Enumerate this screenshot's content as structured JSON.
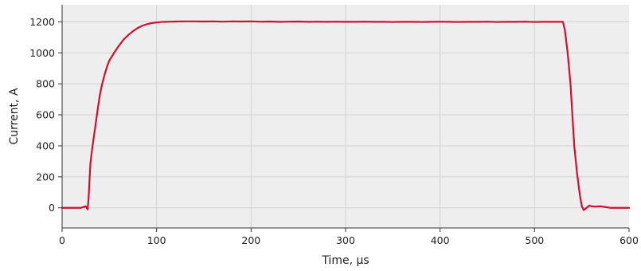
{
  "chart_data": {
    "type": "line",
    "title": "",
    "xlabel": "Time, µs",
    "ylabel": "Current, A",
    "xlim": [
      0,
      600
    ],
    "ylim": [
      -130,
      1310
    ],
    "xticks": [
      0,
      100,
      200,
      300,
      400,
      500,
      600
    ],
    "yticks": [
      0,
      200,
      400,
      600,
      800,
      1000,
      1200
    ],
    "grid": true,
    "legend": "none",
    "colors": {
      "line": "#cc1133",
      "plot_background": "#eeeeee",
      "grid": "#d2d2d2",
      "axis": "#333333"
    },
    "series": [
      {
        "x": [
          0,
          10,
          20,
          25,
          27,
          28,
          29,
          30,
          32,
          35,
          38,
          40,
          42,
          45,
          48,
          50,
          55,
          60,
          65,
          70,
          75,
          80,
          85,
          90,
          95,
          100,
          105,
          110,
          115,
          120,
          130,
          140,
          150,
          160,
          170,
          180,
          190,
          200,
          210,
          220,
          230,
          240,
          250,
          260,
          270,
          280,
          290,
          300,
          310,
          320,
          330,
          340,
          350,
          360,
          370,
          380,
          390,
          400,
          410,
          420,
          430,
          440,
          450,
          460,
          470,
          480,
          490,
          500,
          510,
          520,
          530,
          532,
          535,
          538,
          540,
          542,
          545,
          548,
          550,
          552,
          555,
          558,
          560,
          565,
          570,
          575,
          580,
          585,
          590,
          595,
          600
        ],
        "y": [
          0,
          0,
          0,
          10,
          -10,
          60,
          180,
          290,
          390,
          520,
          650,
          730,
          790,
          860,
          920,
          950,
          1000,
          1045,
          1085,
          1115,
          1140,
          1160,
          1175,
          1185,
          1192,
          1196,
          1199,
          1200,
          1201,
          1202,
          1203,
          1203,
          1202,
          1203,
          1201,
          1203,
          1202,
          1203,
          1201,
          1202,
          1200,
          1201,
          1202,
          1200,
          1201,
          1200,
          1201,
          1200,
          1200,
          1201,
          1200,
          1200,
          1199,
          1200,
          1200,
          1199,
          1200,
          1201,
          1200,
          1199,
          1200,
          1200,
          1201,
          1199,
          1200,
          1200,
          1201,
          1199,
          1200,
          1200,
          1200,
          1150,
          1000,
          800,
          600,
          400,
          220,
          80,
          10,
          -15,
          0,
          15,
          10,
          8,
          10,
          5,
          0,
          0,
          0,
          0,
          0
        ]
      }
    ]
  }
}
